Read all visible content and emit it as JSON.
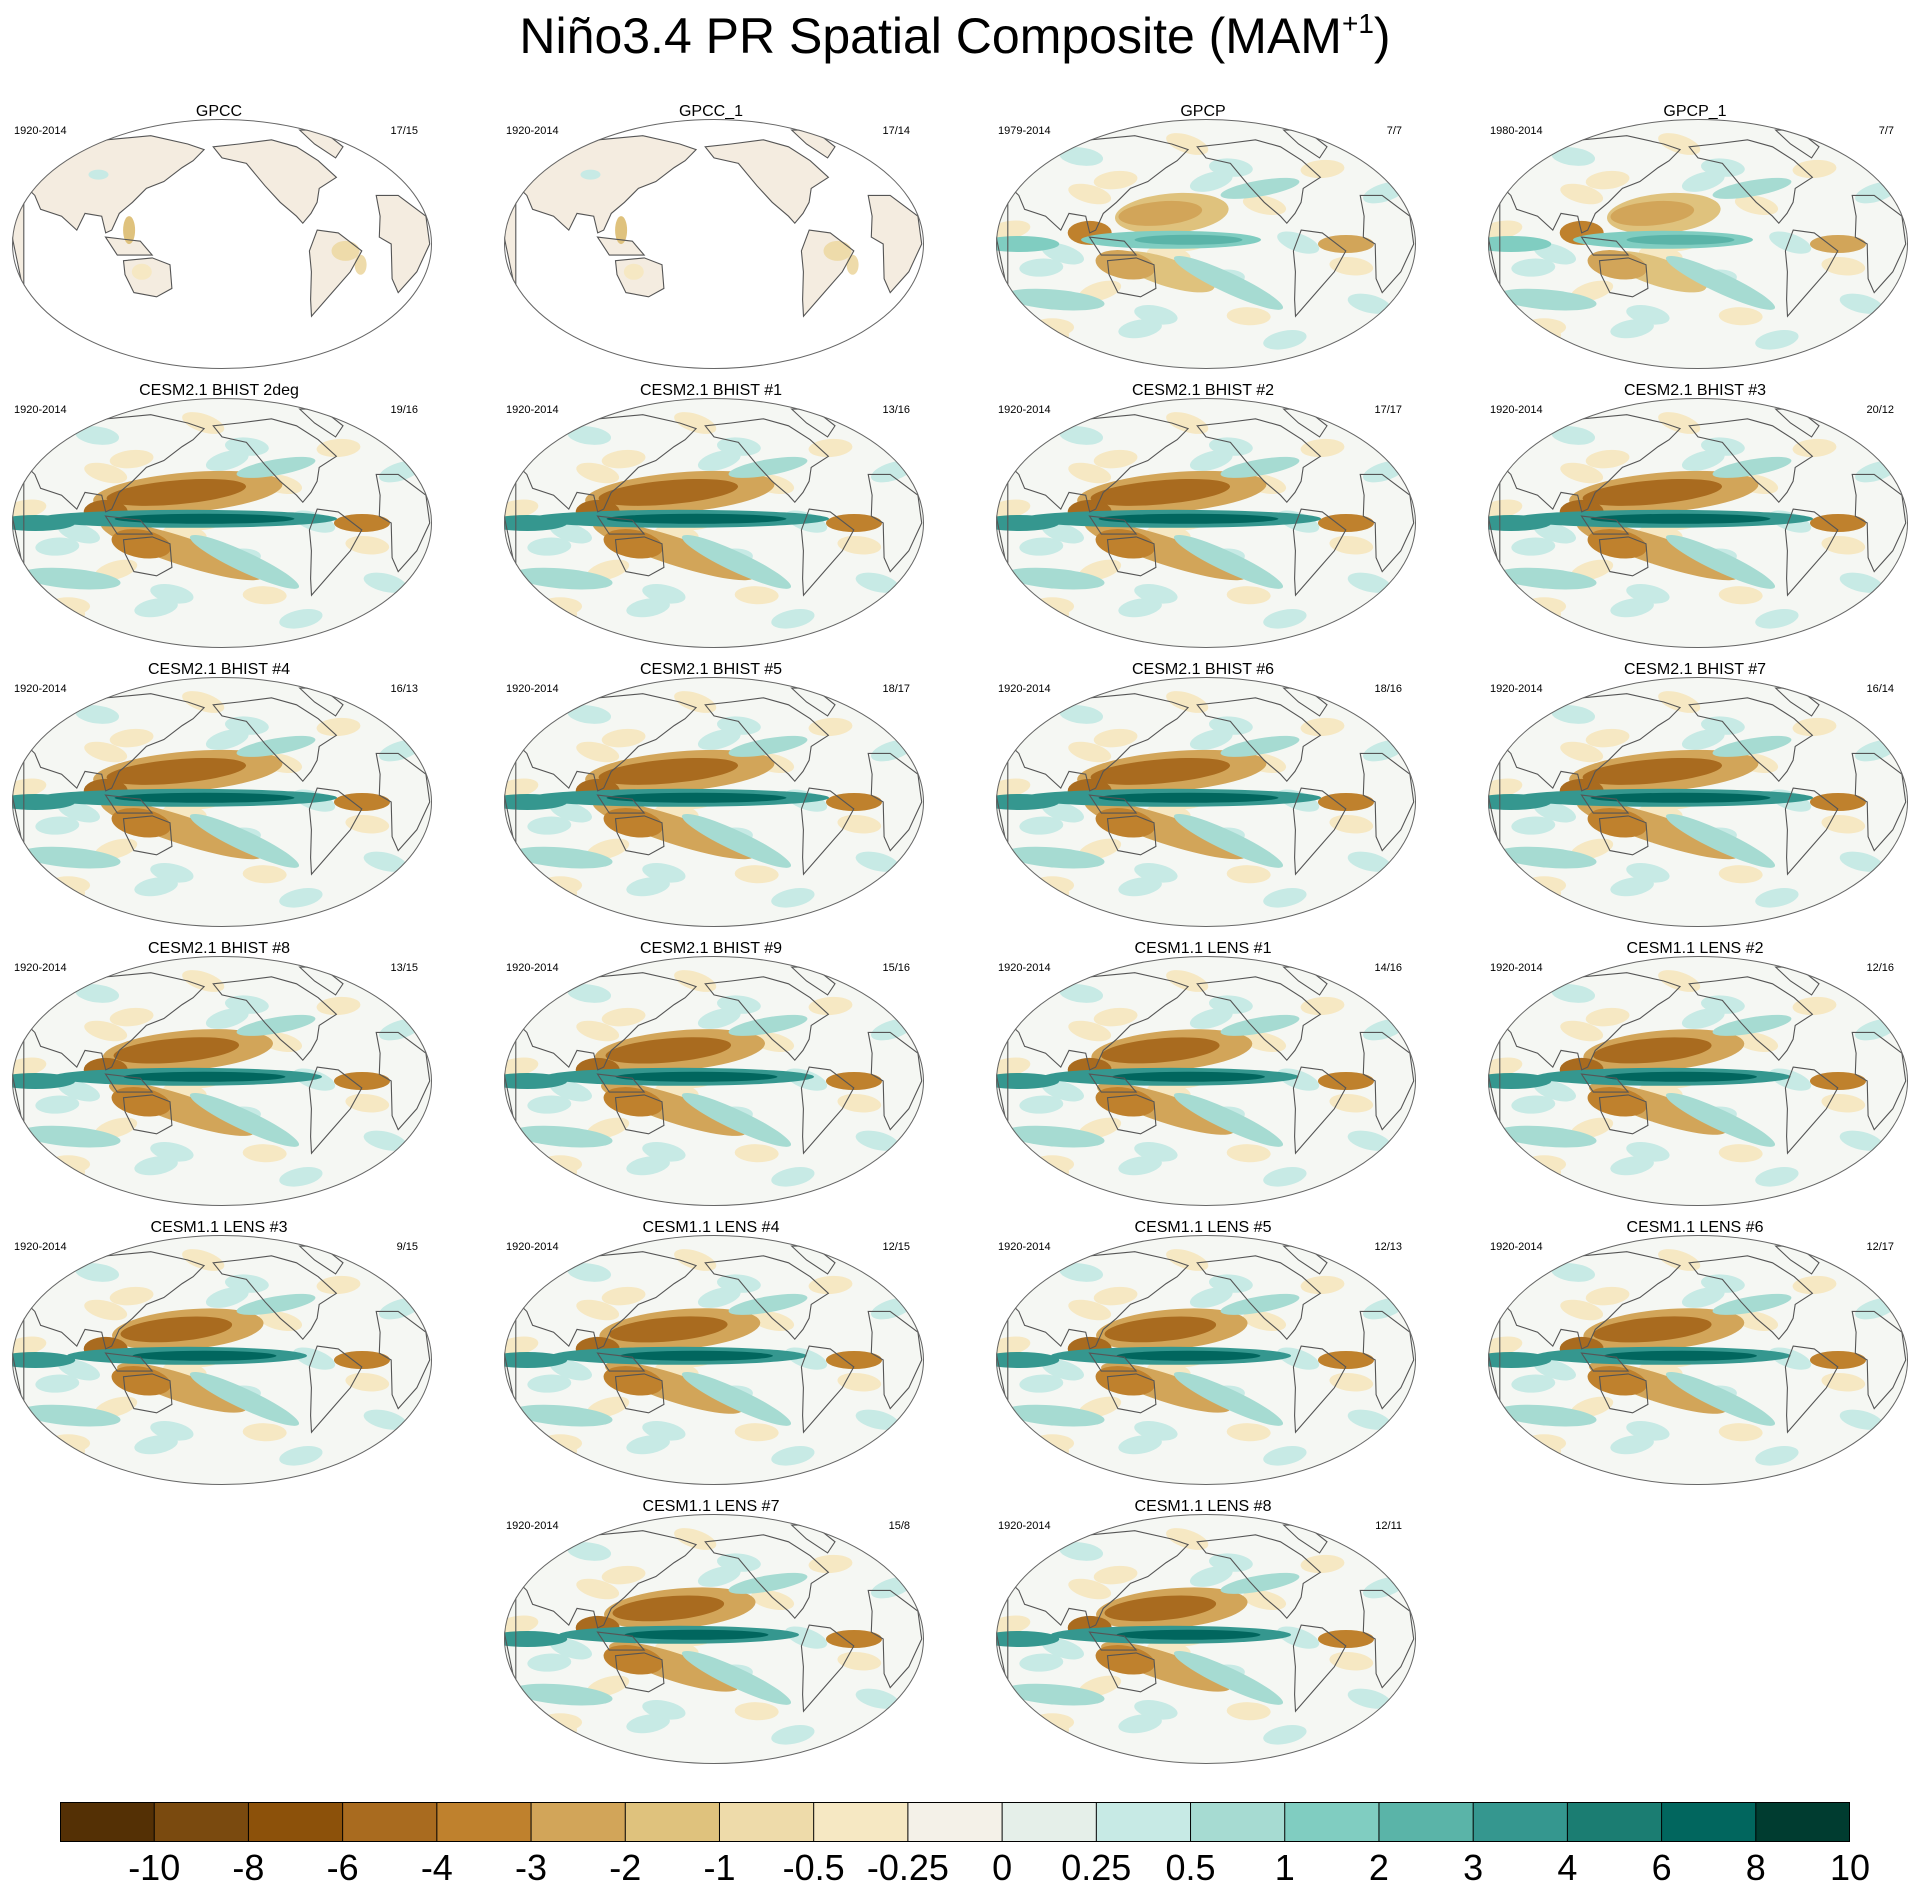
{
  "title": {
    "main": "Niño3.4 PR Spatial Composite (MAM",
    "sup": "+1",
    "close": ")"
  },
  "colors": {
    "coast": "#555555",
    "outline": "#666666",
    "land": "#f4ece0",
    "ocean": "#f5f7f3",
    "white": "#ffffff"
  },
  "chart_data": {
    "type": "heatmap",
    "title": "Niño3.4 PR Spatial Composite (MAM+1)",
    "projection": "Robinson-like global map, Pacific-centered",
    "colorbar": {
      "labels": [
        "-10",
        "-8",
        "-6",
        "-4",
        "-3",
        "-2",
        "-1",
        "-0.5",
        "-0.25",
        "0",
        "0.25",
        "0.5",
        "1",
        "2",
        "3",
        "4",
        "6",
        "8",
        "10"
      ],
      "colors": [
        "#543005",
        "#7a4a0f",
        "#8c510a",
        "#a96b1f",
        "#bf812d",
        "#d2a559",
        "#dfc27d",
        "#eedbaa",
        "#f6e8c3",
        "#f4f1e8",
        "#e5efe9",
        "#c7eae5",
        "#a6dbd2",
        "#80cdc1",
        "#5ab4a8",
        "#35978f",
        "#1b7d72",
        "#01665e",
        "#003c30"
      ]
    },
    "panels": [
      {
        "name": "GPCC",
        "years": "1920-2014",
        "count": "17/15",
        "kind": "land",
        "intensity": 0.3
      },
      {
        "name": "GPCC_1",
        "years": "1920-2014",
        "count": "17/14",
        "kind": "land",
        "intensity": 0.3
      },
      {
        "name": "GPCP",
        "years": "1979-2014",
        "count": "7/7",
        "kind": "obs",
        "intensity": 0.6
      },
      {
        "name": "GPCP_1",
        "years": "1980-2014",
        "count": "7/7",
        "kind": "obs",
        "intensity": 0.6
      },
      {
        "name": "CESM2.1 BHIST 2deg",
        "years": "1920-2014",
        "count": "19/16",
        "kind": "model",
        "intensity": 1.0
      },
      {
        "name": "CESM2.1 BHIST #1",
        "years": "1920-2014",
        "count": "13/16",
        "kind": "model",
        "intensity": 1.0
      },
      {
        "name": "CESM2.1 BHIST #2",
        "years": "1920-2014",
        "count": "17/17",
        "kind": "model",
        "intensity": 1.0
      },
      {
        "name": "CESM2.1 BHIST #3",
        "years": "1920-2014",
        "count": "20/12",
        "kind": "model",
        "intensity": 1.0
      },
      {
        "name": "CESM2.1 BHIST #4",
        "years": "1920-2014",
        "count": "16/13",
        "kind": "model",
        "intensity": 1.0
      },
      {
        "name": "CESM2.1 BHIST #5",
        "years": "1920-2014",
        "count": "18/17",
        "kind": "model",
        "intensity": 1.0
      },
      {
        "name": "CESM2.1 BHIST #6",
        "years": "1920-2014",
        "count": "18/16",
        "kind": "model",
        "intensity": 1.0
      },
      {
        "name": "CESM2.1 BHIST #7",
        "years": "1920-2014",
        "count": "16/14",
        "kind": "model",
        "intensity": 1.0
      },
      {
        "name": "CESM2.1 BHIST #8",
        "years": "1920-2014",
        "count": "13/15",
        "kind": "model",
        "intensity": 0.9
      },
      {
        "name": "CESM2.1 BHIST #9",
        "years": "1920-2014",
        "count": "15/16",
        "kind": "model",
        "intensity": 0.9
      },
      {
        "name": "CESM1.1 LENS #1",
        "years": "1920-2014",
        "count": "14/16",
        "kind": "model",
        "intensity": 0.85
      },
      {
        "name": "CESM1.1 LENS #2",
        "years": "1920-2014",
        "count": "12/16",
        "kind": "model",
        "intensity": 0.85
      },
      {
        "name": "CESM1.1 LENS #3",
        "years": "1920-2014",
        "count": "9/15",
        "kind": "model",
        "intensity": 0.8
      },
      {
        "name": "CESM1.1 LENS #4",
        "years": "1920-2014",
        "count": "12/15",
        "kind": "model",
        "intensity": 0.85
      },
      {
        "name": "CESM1.1 LENS #5",
        "years": "1920-2014",
        "count": "12/13",
        "kind": "model",
        "intensity": 0.8
      },
      {
        "name": "CESM1.1 LENS #6",
        "years": "1920-2014",
        "count": "12/17",
        "kind": "model",
        "intensity": 0.85
      },
      {
        "name": "CESM1.1 LENS #7",
        "years": "1920-2014",
        "count": "15/8",
        "kind": "model",
        "intensity": 0.8
      },
      {
        "name": "CESM1.1 LENS #8",
        "years": "1920-2014",
        "count": "12/11",
        "kind": "model",
        "intensity": 0.8
      }
    ]
  }
}
